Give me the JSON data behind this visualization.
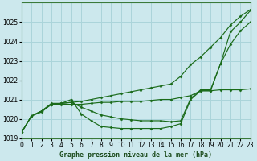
{
  "title": "Graphe pression niveau de la mer (hPa)",
  "background_color": "#cce8ed",
  "grid_color": "#aad4da",
  "xlim": [
    0,
    23
  ],
  "ylim": [
    1019,
    1026
  ],
  "xticks": [
    0,
    1,
    2,
    3,
    4,
    5,
    6,
    7,
    8,
    9,
    10,
    11,
    12,
    13,
    14,
    15,
    16,
    17,
    18,
    19,
    20,
    21,
    22,
    23
  ],
  "yticks": [
    1019,
    1020,
    1021,
    1022,
    1023,
    1024,
    1025
  ],
  "series": [
    {
      "x": [
        0,
        1,
        2,
        3,
        4,
        5,
        6,
        7,
        8,
        9,
        10,
        11,
        12,
        13,
        14,
        15,
        16,
        17,
        18,
        19,
        20,
        21,
        22,
        23
      ],
      "y": [
        1019.3,
        1020.15,
        1020.4,
        1020.75,
        1020.8,
        1020.85,
        1020.9,
        1021.0,
        1021.1,
        1021.2,
        1021.3,
        1021.4,
        1021.5,
        1021.6,
        1021.7,
        1021.8,
        1022.2,
        1022.8,
        1023.2,
        1023.7,
        1024.2,
        1024.85,
        1025.3,
        1025.65
      ]
    },
    {
      "x": [
        0,
        1,
        2,
        3,
        4,
        5,
        6,
        7,
        8,
        9,
        10,
        11,
        12,
        13,
        14,
        15,
        16,
        17,
        18,
        19,
        20,
        21,
        22,
        23
      ],
      "y": [
        1019.3,
        1020.15,
        1020.4,
        1020.75,
        1020.8,
        1020.85,
        1020.6,
        1020.4,
        1020.2,
        1020.1,
        1020.0,
        1019.95,
        1019.9,
        1019.9,
        1019.9,
        1019.85,
        1019.9,
        1021.05,
        1021.5,
        1021.5,
        1022.85,
        1023.85,
        1024.55,
        1025.0
      ]
    },
    {
      "x": [
        0,
        1,
        2,
        3,
        4,
        5,
        6,
        7,
        8,
        9,
        10,
        11,
        12,
        13,
        14,
        15,
        16,
        17,
        18,
        19,
        20,
        21,
        22,
        23
      ],
      "y": [
        1019.3,
        1020.15,
        1020.4,
        1020.8,
        1020.8,
        1021.0,
        1020.25,
        1019.9,
        1019.6,
        1019.55,
        1019.5,
        1019.5,
        1019.5,
        1019.5,
        1019.5,
        1019.6,
        1019.75,
        1021.0,
        1021.45,
        1021.45,
        1022.85,
        1024.5,
        1025.0,
        1025.6
      ]
    },
    {
      "x": [
        0,
        1,
        2,
        3,
        4,
        5,
        6,
        7,
        8,
        9,
        10,
        11,
        12,
        13,
        14,
        15,
        16,
        17,
        18,
        19,
        20,
        21,
        22,
        23
      ],
      "y": [
        1019.3,
        1020.15,
        1020.35,
        1020.75,
        1020.75,
        1020.75,
        1020.75,
        1020.8,
        1020.85,
        1020.85,
        1020.9,
        1020.9,
        1020.9,
        1020.95,
        1021.0,
        1021.0,
        1021.1,
        1021.2,
        1021.45,
        1021.45,
        1021.5,
        1021.5,
        1021.5,
        1021.55
      ]
    }
  ]
}
